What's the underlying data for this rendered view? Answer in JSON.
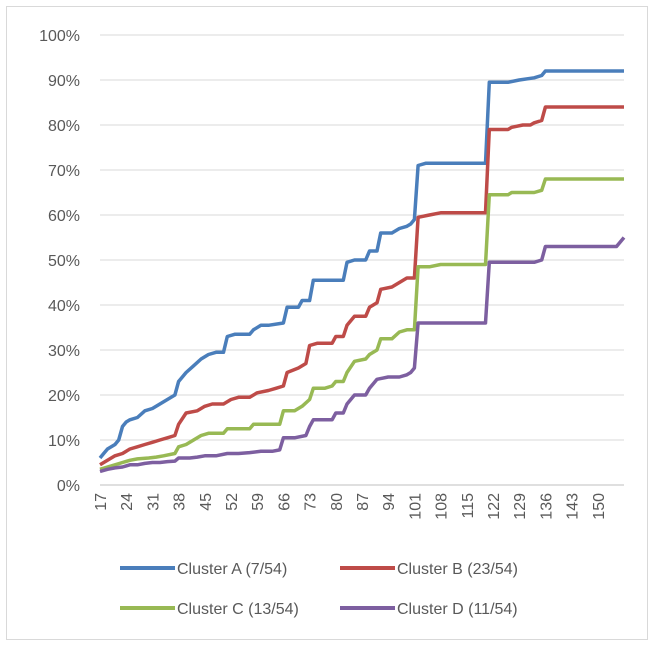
{
  "chart_data": {
    "type": "line",
    "title": "",
    "xlabel": "",
    "ylabel": "",
    "ylim": [
      0,
      1
    ],
    "y_tick_labels": [
      "0%",
      "10%",
      "20%",
      "30%",
      "40%",
      "50%",
      "60%",
      "70%",
      "80%",
      "90%",
      "100%"
    ],
    "xlim": [
      17,
      157
    ],
    "x_tick_labels": [
      "17",
      "24",
      "31",
      "38",
      "45",
      "52",
      "59",
      "66",
      "73",
      "80",
      "87",
      "94",
      "101",
      "108",
      "115",
      "122",
      "129",
      "136",
      "143",
      "150"
    ],
    "grid": "horizontal",
    "legend_position": "bottom",
    "series": [
      {
        "name": "Cluster A (7/54)",
        "color": "#4a7ebb",
        "points": [
          [
            17,
            0.06
          ],
          [
            18,
            0.07
          ],
          [
            19,
            0.08
          ],
          [
            21,
            0.09
          ],
          [
            22,
            0.1
          ],
          [
            23,
            0.13
          ],
          [
            24,
            0.14
          ],
          [
            25,
            0.145
          ],
          [
            27,
            0.15
          ],
          [
            29,
            0.165
          ],
          [
            31,
            0.17
          ],
          [
            33,
            0.18
          ],
          [
            35,
            0.19
          ],
          [
            37,
            0.2
          ],
          [
            38,
            0.23
          ],
          [
            40,
            0.25
          ],
          [
            42,
            0.265
          ],
          [
            44,
            0.28
          ],
          [
            46,
            0.29
          ],
          [
            48,
            0.295
          ],
          [
            50,
            0.295
          ],
          [
            51,
            0.33
          ],
          [
            53,
            0.335
          ],
          [
            57,
            0.335
          ],
          [
            58,
            0.345
          ],
          [
            60,
            0.355
          ],
          [
            62,
            0.355
          ],
          [
            66,
            0.36
          ],
          [
            67,
            0.395
          ],
          [
            70,
            0.395
          ],
          [
            71,
            0.41
          ],
          [
            73,
            0.41
          ],
          [
            74,
            0.455
          ],
          [
            80,
            0.455
          ],
          [
            81,
            0.455
          ],
          [
            82,
            0.455
          ],
          [
            83,
            0.495
          ],
          [
            85,
            0.5
          ],
          [
            88,
            0.5
          ],
          [
            89,
            0.52
          ],
          [
            91,
            0.52
          ],
          [
            92,
            0.56
          ],
          [
            95,
            0.56
          ],
          [
            97,
            0.57
          ],
          [
            99,
            0.575
          ],
          [
            100,
            0.58
          ],
          [
            101,
            0.59
          ],
          [
            102,
            0.71
          ],
          [
            104,
            0.715
          ],
          [
            120,
            0.715
          ],
          [
            121,
            0.895
          ],
          [
            126,
            0.895
          ],
          [
            129,
            0.9
          ],
          [
            133,
            0.905
          ],
          [
            135,
            0.91
          ],
          [
            136,
            0.92
          ],
          [
            157,
            0.92
          ]
        ]
      },
      {
        "name": "Cluster B (23/54)",
        "color": "#be4b48",
        "points": [
          [
            17,
            0.045
          ],
          [
            19,
            0.055
          ],
          [
            21,
            0.065
          ],
          [
            23,
            0.07
          ],
          [
            25,
            0.08
          ],
          [
            27,
            0.085
          ],
          [
            29,
            0.09
          ],
          [
            31,
            0.095
          ],
          [
            33,
            0.1
          ],
          [
            35,
            0.105
          ],
          [
            37,
            0.11
          ],
          [
            38,
            0.135
          ],
          [
            40,
            0.16
          ],
          [
            43,
            0.165
          ],
          [
            45,
            0.175
          ],
          [
            47,
            0.18
          ],
          [
            50,
            0.18
          ],
          [
            52,
            0.19
          ],
          [
            54,
            0.195
          ],
          [
            57,
            0.195
          ],
          [
            59,
            0.205
          ],
          [
            62,
            0.21
          ],
          [
            64,
            0.215
          ],
          [
            66,
            0.22
          ],
          [
            67,
            0.25
          ],
          [
            70,
            0.26
          ],
          [
            72,
            0.27
          ],
          [
            73,
            0.31
          ],
          [
            75,
            0.315
          ],
          [
            77,
            0.315
          ],
          [
            79,
            0.315
          ],
          [
            80,
            0.33
          ],
          [
            82,
            0.33
          ],
          [
            83,
            0.355
          ],
          [
            85,
            0.375
          ],
          [
            88,
            0.375
          ],
          [
            89,
            0.395
          ],
          [
            91,
            0.405
          ],
          [
            92,
            0.435
          ],
          [
            95,
            0.44
          ],
          [
            97,
            0.45
          ],
          [
            99,
            0.46
          ],
          [
            101,
            0.46
          ],
          [
            102,
            0.595
          ],
          [
            105,
            0.6
          ],
          [
            108,
            0.605
          ],
          [
            120,
            0.605
          ],
          [
            121,
            0.79
          ],
          [
            126,
            0.79
          ],
          [
            127,
            0.795
          ],
          [
            130,
            0.8
          ],
          [
            132,
            0.8
          ],
          [
            133,
            0.805
          ],
          [
            135,
            0.81
          ],
          [
            136,
            0.84
          ],
          [
            157,
            0.84
          ]
        ]
      },
      {
        "name": "Cluster C (13/54)",
        "color": "#98b954",
        "points": [
          [
            17,
            0.035
          ],
          [
            19,
            0.04
          ],
          [
            21,
            0.045
          ],
          [
            23,
            0.05
          ],
          [
            25,
            0.055
          ],
          [
            27,
            0.058
          ],
          [
            30,
            0.06
          ],
          [
            32,
            0.062
          ],
          [
            34,
            0.065
          ],
          [
            37,
            0.07
          ],
          [
            38,
            0.085
          ],
          [
            40,
            0.09
          ],
          [
            42,
            0.1
          ],
          [
            44,
            0.11
          ],
          [
            46,
            0.115
          ],
          [
            50,
            0.115
          ],
          [
            51,
            0.125
          ],
          [
            53,
            0.125
          ],
          [
            57,
            0.125
          ],
          [
            58,
            0.135
          ],
          [
            60,
            0.135
          ],
          [
            65,
            0.135
          ],
          [
            66,
            0.165
          ],
          [
            69,
            0.165
          ],
          [
            71,
            0.175
          ],
          [
            73,
            0.19
          ],
          [
            74,
            0.215
          ],
          [
            77,
            0.215
          ],
          [
            79,
            0.22
          ],
          [
            80,
            0.23
          ],
          [
            82,
            0.23
          ],
          [
            83,
            0.25
          ],
          [
            85,
            0.275
          ],
          [
            88,
            0.28
          ],
          [
            89,
            0.29
          ],
          [
            91,
            0.3
          ],
          [
            92,
            0.325
          ],
          [
            95,
            0.325
          ],
          [
            97,
            0.34
          ],
          [
            99,
            0.345
          ],
          [
            101,
            0.345
          ],
          [
            102,
            0.485
          ],
          [
            105,
            0.485
          ],
          [
            108,
            0.49
          ],
          [
            120,
            0.49
          ],
          [
            121,
            0.645
          ],
          [
            126,
            0.645
          ],
          [
            127,
            0.65
          ],
          [
            130,
            0.65
          ],
          [
            133,
            0.65
          ],
          [
            135,
            0.655
          ],
          [
            136,
            0.68
          ],
          [
            157,
            0.68
          ]
        ]
      },
      {
        "name": "Cluster D (11/54)",
        "color": "#7d5fa0",
        "points": [
          [
            17,
            0.03
          ],
          [
            19,
            0.035
          ],
          [
            21,
            0.038
          ],
          [
            23,
            0.04
          ],
          [
            25,
            0.045
          ],
          [
            27,
            0.045
          ],
          [
            29,
            0.048
          ],
          [
            31,
            0.05
          ],
          [
            33,
            0.05
          ],
          [
            35,
            0.052
          ],
          [
            37,
            0.053
          ],
          [
            38,
            0.06
          ],
          [
            41,
            0.06
          ],
          [
            43,
            0.062
          ],
          [
            45,
            0.065
          ],
          [
            48,
            0.065
          ],
          [
            51,
            0.07
          ],
          [
            54,
            0.07
          ],
          [
            57,
            0.072
          ],
          [
            60,
            0.075
          ],
          [
            63,
            0.075
          ],
          [
            65,
            0.078
          ],
          [
            66,
            0.105
          ],
          [
            69,
            0.105
          ],
          [
            72,
            0.11
          ],
          [
            73,
            0.13
          ],
          [
            74,
            0.145
          ],
          [
            77,
            0.145
          ],
          [
            79,
            0.145
          ],
          [
            80,
            0.16
          ],
          [
            82,
            0.16
          ],
          [
            83,
            0.18
          ],
          [
            85,
            0.2
          ],
          [
            88,
            0.2
          ],
          [
            89,
            0.215
          ],
          [
            91,
            0.235
          ],
          [
            94,
            0.24
          ],
          [
            97,
            0.24
          ],
          [
            99,
            0.245
          ],
          [
            100,
            0.25
          ],
          [
            101,
            0.26
          ],
          [
            102,
            0.36
          ],
          [
            105,
            0.36
          ],
          [
            108,
            0.36
          ],
          [
            114,
            0.36
          ],
          [
            120,
            0.36
          ],
          [
            121,
            0.495
          ],
          [
            126,
            0.495
          ],
          [
            133,
            0.495
          ],
          [
            135,
            0.5
          ],
          [
            136,
            0.53
          ],
          [
            150,
            0.53
          ],
          [
            155,
            0.53
          ],
          [
            157,
            0.55
          ]
        ]
      }
    ]
  }
}
